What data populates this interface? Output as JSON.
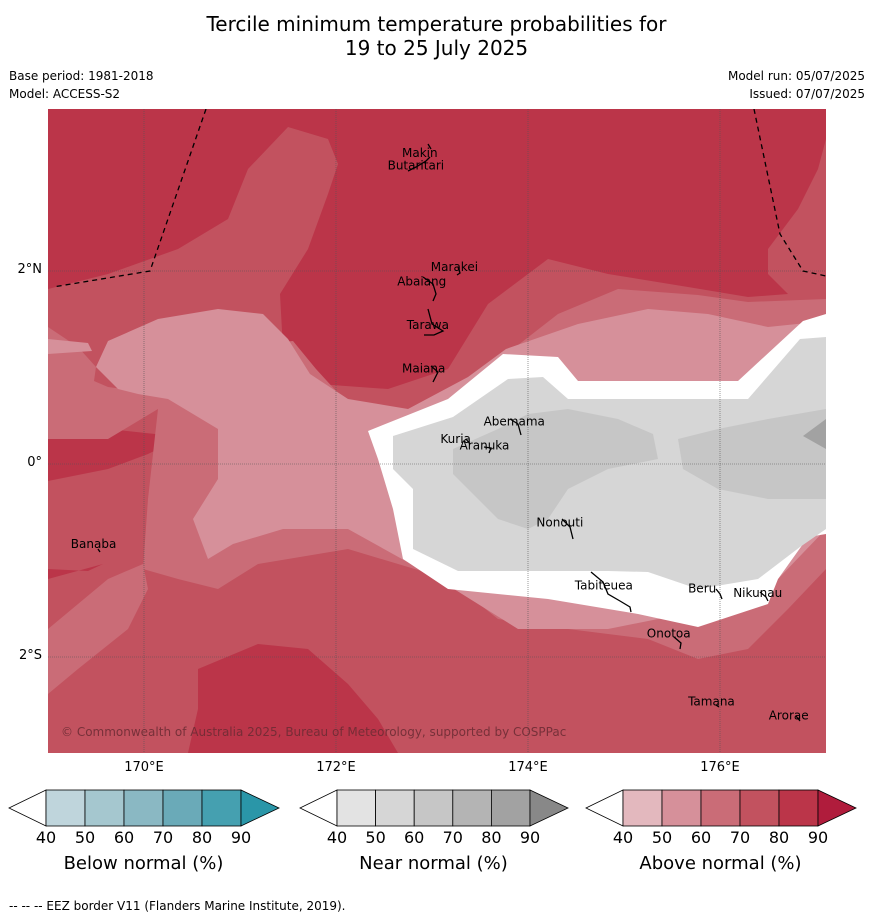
{
  "title": {
    "line1": "Tercile minimum temperature probabilities for",
    "line2": "19 to 25 July 2025"
  },
  "meta": {
    "base_period": "Base period: 1981-2018",
    "model": "Model: ACCESS-S2",
    "model_run": "Model run: 05/07/2025",
    "issued": "Issued: 07/07/2025"
  },
  "map": {
    "extent_lon": [
      169.0,
      177.1
    ],
    "extent_lat": [
      -3.0,
      3.5
    ],
    "lat_ticks": [
      {
        "value": 2,
        "label": "2°N"
      },
      {
        "value": 0,
        "label": "0°"
      },
      {
        "value": -2,
        "label": "2°S"
      }
    ],
    "lon_ticks": [
      {
        "value": 170,
        "label": "170°E"
      },
      {
        "value": 172,
        "label": "172°E"
      },
      {
        "value": 174,
        "label": "174°E"
      },
      {
        "value": 176,
        "label": "176°E"
      }
    ],
    "islands": [
      {
        "name": "Makin",
        "lon": 173.0,
        "lat": 3.18
      },
      {
        "name": "Butaritari",
        "lon": 172.85,
        "lat": 3.05
      },
      {
        "name": "Marakei",
        "lon": 173.3,
        "lat": 2.0
      },
      {
        "name": "Abaiang",
        "lon": 172.95,
        "lat": 1.85
      },
      {
        "name": "Tarawa",
        "lon": 173.05,
        "lat": 1.4
      },
      {
        "name": "Maiana",
        "lon": 173.0,
        "lat": 0.95
      },
      {
        "name": "Abemama",
        "lon": 173.85,
        "lat": 0.4
      },
      {
        "name": "Kuria",
        "lon": 173.4,
        "lat": 0.22
      },
      {
        "name": "Aranuka",
        "lon": 173.6,
        "lat": 0.15
      },
      {
        "name": "Nonouti",
        "lon": 174.4,
        "lat": -0.65
      },
      {
        "name": "Banaba",
        "lon": 169.55,
        "lat": -0.87
      },
      {
        "name": "Tabiteuea",
        "lon": 174.8,
        "lat": -1.3
      },
      {
        "name": "Beru",
        "lon": 175.98,
        "lat": -1.33
      },
      {
        "name": "Nikunau",
        "lon": 176.45,
        "lat": -1.38
      },
      {
        "name": "Onotoa",
        "lon": 175.55,
        "lat": -1.8
      },
      {
        "name": "Tamana",
        "lon": 175.98,
        "lat": -2.5
      },
      {
        "name": "Arorae",
        "lon": 176.82,
        "lat": -2.65
      }
    ],
    "copyright": "© Commonwealth of Australia 2025, Bureau of Meteorology, supported by COSPPac"
  },
  "colorbars": [
    {
      "label": "Below normal (%)",
      "ticks": [
        "40",
        "50",
        "60",
        "70",
        "80",
        "90"
      ],
      "colors": [
        "#ffffff",
        "#bfd5dc",
        "#a5c7cf",
        "#8ab8c3",
        "#6aaab8",
        "#45a0b0",
        "#2a96a8"
      ]
    },
    {
      "label": "Near normal (%)",
      "ticks": [
        "40",
        "50",
        "60",
        "70",
        "80",
        "90"
      ],
      "colors": [
        "#ffffff",
        "#e3e3e3",
        "#d6d6d6",
        "#c6c6c6",
        "#b4b4b4",
        "#a2a2a2",
        "#888888"
      ]
    },
    {
      "label": "Above normal (%)",
      "ticks": [
        "40",
        "50",
        "60",
        "70",
        "80",
        "90"
      ],
      "colors": [
        "#ffffff",
        "#e3b8be",
        "#d6909a",
        "#ca6c77",
        "#c2525f",
        "#bb3549",
        "#b01c3c"
      ]
    }
  ],
  "footer": "--  --  -- EEZ border V11 (Flanders Marine Institute, 2019)."
}
